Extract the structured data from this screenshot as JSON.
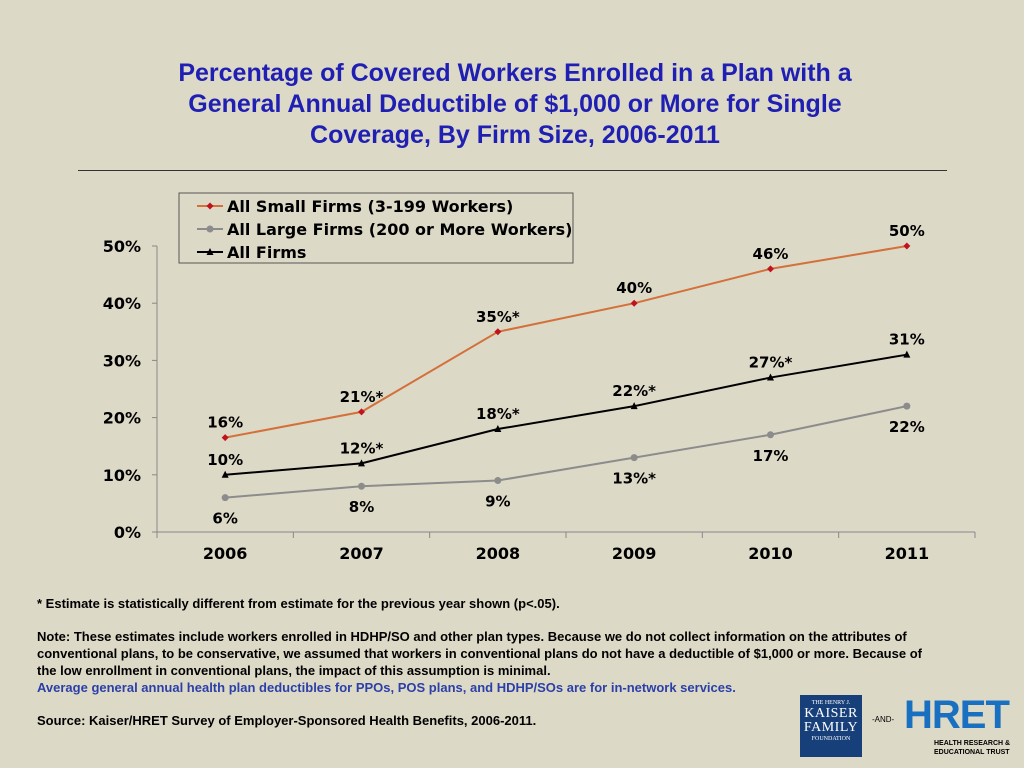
{
  "title_lines": [
    "Percentage of Covered Workers Enrolled in a Plan with a",
    "General Annual Deductible of $1,000 or More for Single",
    "Coverage, By Firm Size, 2006-2011"
  ],
  "chart_data": {
    "type": "line",
    "categories": [
      "2006",
      "2007",
      "2008",
      "2009",
      "2010",
      "2011"
    ],
    "ylim": [
      0,
      50
    ],
    "yticks": [
      "0%",
      "10%",
      "20%",
      "30%",
      "40%",
      "50%"
    ],
    "legend_position": "top-left",
    "series": [
      {
        "name": "All Small Firms (3-199 Workers)",
        "values": [
          16.5,
          21,
          35,
          40,
          46,
          50
        ],
        "labels": [
          "16%",
          "21%*",
          "35%*",
          "40%",
          "46%",
          "50%"
        ],
        "color": "#d4703a",
        "marker": "diamond",
        "marker_color": "#c0141c",
        "label_position": "above"
      },
      {
        "name": "All Large Firms (200 or More Workers)",
        "values": [
          6,
          8,
          9,
          13,
          17,
          22
        ],
        "labels": [
          "6%",
          "8%",
          "9%",
          "13%*",
          "17%",
          "22%"
        ],
        "color": "#8c8c8c",
        "marker": "circle",
        "marker_color": "#8c8c8c",
        "label_position": "below"
      },
      {
        "name": "All Firms",
        "values": [
          10,
          12,
          18,
          22,
          27,
          31
        ],
        "labels": [
          "10%",
          "12%*",
          "18%*",
          "22%*",
          "27%*",
          "31%"
        ],
        "color": "#000000",
        "marker": "triangle",
        "marker_color": "#000000",
        "label_position": "above"
      }
    ]
  },
  "notes": {
    "asterisk": "* Estimate is statistically different from estimate for the previous year shown (p<.05).",
    "note": "Note: These estimates include workers enrolled in HDHP/SO and other plan types.  Because we do not collect information on the attributes of conventional plans, to be conservative, we assumed that workers in conventional plans do not have a deductible of $1,000 or more.  Because of the low enrollment in conventional plans, the impact of this assumption is minimal.",
    "blue": "Average general annual health plan deductibles for PPOs, POS plans, and HDHP/SOs are for in-network services.",
    "source": "Source: Kaiser/HRET Survey of Employer-Sponsored Health Benefits, 2006-2011."
  },
  "logos": {
    "kff_small": "THE HENRY J.",
    "kff_big": [
      "KAISER",
      "FAMILY"
    ],
    "kff_foot": "FOUNDATION",
    "and": "-AND-",
    "hret": "HRET",
    "hret_sub": [
      "HEALTH RESEARCH &",
      "EDUCATIONAL TRUST"
    ]
  }
}
